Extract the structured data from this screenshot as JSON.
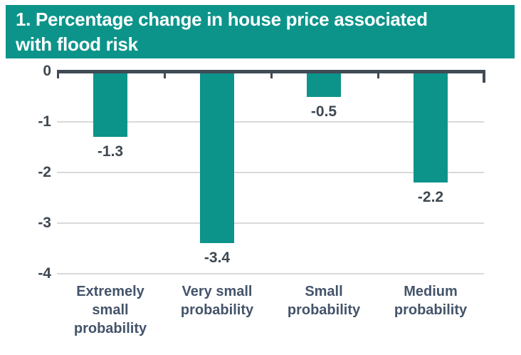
{
  "header": {
    "title_line1": "1. Percentage change in house price associated",
    "title_line2": "with flood risk"
  },
  "chart_data": {
    "type": "bar",
    "title": "1. Percentage change in house price associated with flood risk",
    "categories": [
      "Extremely small probability",
      "Very small probability",
      "Small probability",
      "Medium probability"
    ],
    "values": [
      -1.3,
      -3.4,
      -0.5,
      -2.2
    ],
    "data_labels": [
      "-1.3",
      "-3.4",
      "-0.5",
      "-2.2"
    ],
    "y_ticks": [
      0,
      -1,
      -2,
      -3,
      -4
    ],
    "y_tick_labels": [
      "0",
      "-1",
      "-2",
      "-3",
      "-4"
    ],
    "ylim": [
      -4,
      0
    ],
    "xlabel": "",
    "ylabel": "",
    "grid": "horizontal",
    "legend": "none",
    "colors": {
      "banner_bg": "#0C948A",
      "banner_text": "#FFFFFF",
      "bar_fill": "#0C948A",
      "axis_line": "#3F4A55",
      "value_text": "#3E4852",
      "category_text": "#44546A",
      "gridline": "#D9D9D9",
      "background": "#FFFFFF"
    }
  }
}
